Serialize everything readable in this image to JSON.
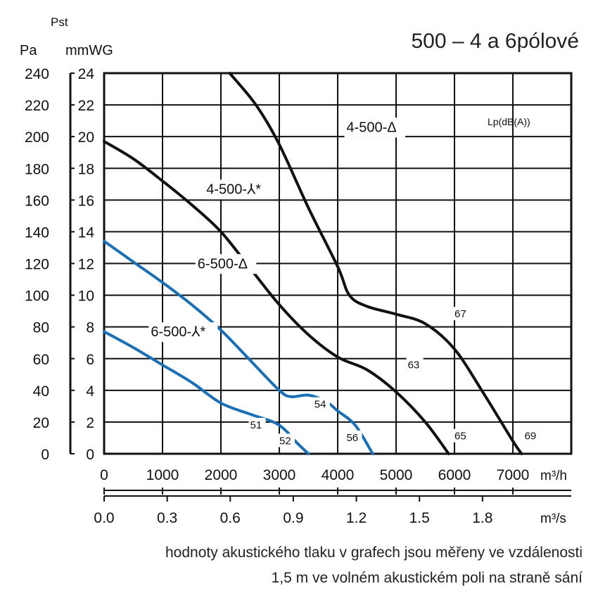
{
  "chart_data": {
    "type": "line",
    "title": "500 – 4 a 6pólové",
    "y_symbol": "Pst",
    "y_unit_left": "Pa",
    "y_unit_right": "mmWG",
    "x_unit_primary": "m³/h",
    "x_unit_secondary": "m³/s",
    "noise_header": "Lp(dB(A))",
    "xlim": [
      0,
      8000
    ],
    "ylim_pa": [
      0,
      240
    ],
    "ylim_mmwg": [
      0,
      24
    ],
    "grid": true,
    "x_ticks_m3h": [
      "0",
      "1000",
      "2000",
      "3000",
      "4000",
      "5000",
      "6000",
      "7000"
    ],
    "x_ticks_m3h_values": [
      0,
      1000,
      2000,
      3000,
      4000,
      5000,
      6000,
      7000
    ],
    "x_ticks_m3s": [
      "0.0",
      "0.3",
      "0.6",
      "0.9",
      "1.2",
      "1.5",
      "1.8"
    ],
    "x_ticks_m3s_values": [
      0.0,
      0.3,
      0.6,
      0.9,
      1.2,
      1.5,
      1.8
    ],
    "y_ticks_pa": [
      "0",
      "20",
      "40",
      "60",
      "80",
      "100",
      "120",
      "140",
      "160",
      "180",
      "200",
      "220",
      "240"
    ],
    "y_ticks_pa_values": [
      0,
      20,
      40,
      60,
      80,
      100,
      120,
      140,
      160,
      180,
      200,
      220,
      240
    ],
    "y_ticks_mmwg": [
      "0",
      "2",
      "4",
      "6",
      "8",
      "10",
      "12",
      "14",
      "16",
      "18",
      "20",
      "22",
      "24"
    ],
    "y_ticks_mmwg_values": [
      0,
      2,
      4,
      6,
      8,
      10,
      12,
      14,
      16,
      18,
      20,
      22,
      24
    ],
    "series": [
      {
        "name": "4-500-Δ",
        "color": "#111111",
        "points": [
          [
            2150,
            240
          ],
          [
            2600,
            220
          ],
          [
            3000,
            195
          ],
          [
            3500,
            155
          ],
          [
            4000,
            118
          ],
          [
            4200,
            100
          ],
          [
            4500,
            93
          ],
          [
            5000,
            88
          ],
          [
            5500,
            82
          ],
          [
            6000,
            66
          ],
          [
            6500,
            38
          ],
          [
            7000,
            8
          ],
          [
            7150,
            0
          ]
        ]
      },
      {
        "name": "4-500-⅄*",
        "color": "#111111",
        "points": [
          [
            0,
            197
          ],
          [
            500,
            186
          ],
          [
            1000,
            172
          ],
          [
            1500,
            157
          ],
          [
            2000,
            140
          ],
          [
            2500,
            117
          ],
          [
            3000,
            94
          ],
          [
            3500,
            75
          ],
          [
            4000,
            61
          ],
          [
            4500,
            53
          ],
          [
            5000,
            39
          ],
          [
            5500,
            20
          ],
          [
            5900,
            0
          ]
        ]
      },
      {
        "name": "6-500-Δ",
        "color": "#1a6fb5",
        "points": [
          [
            0,
            134
          ],
          [
            500,
            121
          ],
          [
            1000,
            108
          ],
          [
            1500,
            94
          ],
          [
            2000,
            78
          ],
          [
            2500,
            59
          ],
          [
            3000,
            40
          ],
          [
            3200,
            36
          ],
          [
            3500,
            37
          ],
          [
            3800,
            33
          ],
          [
            4000,
            27
          ],
          [
            4300,
            18
          ],
          [
            4600,
            0
          ]
        ]
      },
      {
        "name": "6-500-⅄*",
        "color": "#1a6fb5",
        "points": [
          [
            0,
            77
          ],
          [
            500,
            67
          ],
          [
            1000,
            56
          ],
          [
            1500,
            45
          ],
          [
            2000,
            32
          ],
          [
            2500,
            25
          ],
          [
            2900,
            20
          ],
          [
            3100,
            15
          ],
          [
            3300,
            7
          ],
          [
            3500,
            0
          ]
        ]
      }
    ],
    "noise_labels": [
      {
        "text": "67",
        "x": 6000,
        "y": 86
      },
      {
        "text": "63",
        "x": 5200,
        "y": 54
      },
      {
        "text": "54",
        "x": 3600,
        "y": 29
      },
      {
        "text": "51",
        "x": 2500,
        "y": 16
      },
      {
        "text": "52",
        "x": 3000,
        "y": 6
      },
      {
        "text": "56",
        "x": 4150,
        "y": 8
      },
      {
        "text": "65",
        "x": 6000,
        "y": 9
      },
      {
        "text": "69",
        "x": 7200,
        "y": 9
      }
    ],
    "curve_labels": [
      {
        "text": "4-500-Δ",
        "x": 4150,
        "y": 203
      },
      {
        "text": "4-500-⅄*",
        "x": 1750,
        "y": 164
      },
      {
        "text": "6-500-Δ",
        "x": 1600,
        "y": 117
      },
      {
        "text": "6-500-⅄*",
        "x": 800,
        "y": 74
      }
    ]
  },
  "footnote": {
    "line1": "hodnoty akustického tlaku v grafech jsou měřeny ve vzdálenosti",
    "line2": "1,5 m ve volném akustickém poli na straně sání"
  }
}
